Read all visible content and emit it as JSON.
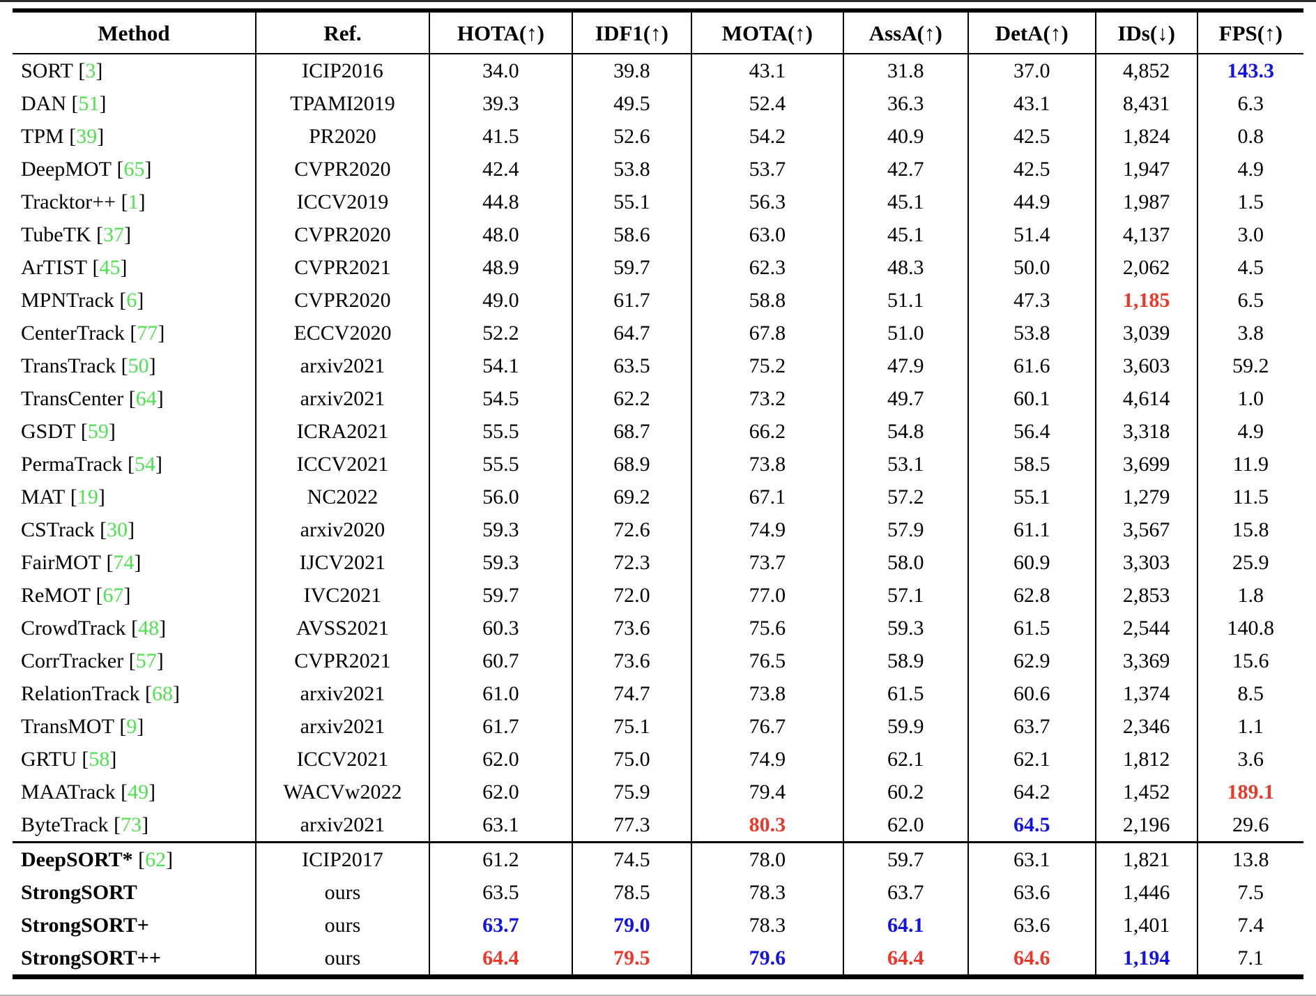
{
  "colors": {
    "best_red": "#e8392b",
    "second_blue": "#1414e0",
    "citation_green": "#4fe14f",
    "rule_black": "#000000"
  },
  "table": {
    "columns": [
      {
        "label": "Method"
      },
      {
        "label": "Ref."
      },
      {
        "label": "HOTA(↑)"
      },
      {
        "label": "IDF1(↑)"
      },
      {
        "label": "MOTA(↑)"
      },
      {
        "label": "AssA(↑)"
      },
      {
        "label": "DetA(↑)"
      },
      {
        "label": "IDs(↓)"
      },
      {
        "label": "FPS(↑)"
      }
    ],
    "section2_start_index": 24,
    "rows": [
      {
        "method": "SORT",
        "cite": "3",
        "bold": false,
        "ref": "ICIP2016",
        "metrics": [
          {
            "v": "34.0"
          },
          {
            "v": "39.8"
          },
          {
            "v": "43.1"
          },
          {
            "v": "31.8"
          },
          {
            "v": "37.0"
          },
          {
            "v": "4,852"
          },
          {
            "v": "143.3",
            "hl": "second"
          }
        ]
      },
      {
        "method": "DAN",
        "cite": "51",
        "bold": false,
        "ref": "TPAMI2019",
        "metrics": [
          {
            "v": "39.3"
          },
          {
            "v": "49.5"
          },
          {
            "v": "52.4"
          },
          {
            "v": "36.3"
          },
          {
            "v": "43.1"
          },
          {
            "v": "8,431"
          },
          {
            "v": "6.3"
          }
        ]
      },
      {
        "method": "TPM",
        "cite": "39",
        "bold": false,
        "ref": "PR2020",
        "metrics": [
          {
            "v": "41.5"
          },
          {
            "v": "52.6"
          },
          {
            "v": "54.2"
          },
          {
            "v": "40.9"
          },
          {
            "v": "42.5"
          },
          {
            "v": "1,824"
          },
          {
            "v": "0.8"
          }
        ]
      },
      {
        "method": "DeepMOT",
        "cite": "65",
        "bold": false,
        "ref": "CVPR2020",
        "metrics": [
          {
            "v": "42.4"
          },
          {
            "v": "53.8"
          },
          {
            "v": "53.7"
          },
          {
            "v": "42.7"
          },
          {
            "v": "42.5"
          },
          {
            "v": "1,947"
          },
          {
            "v": "4.9"
          }
        ]
      },
      {
        "method": "Tracktor++",
        "cite": "1",
        "bold": false,
        "ref": "ICCV2019",
        "metrics": [
          {
            "v": "44.8"
          },
          {
            "v": "55.1"
          },
          {
            "v": "56.3"
          },
          {
            "v": "45.1"
          },
          {
            "v": "44.9"
          },
          {
            "v": "1,987"
          },
          {
            "v": "1.5"
          }
        ]
      },
      {
        "method": "TubeTK",
        "cite": "37",
        "bold": false,
        "ref": "CVPR2020",
        "metrics": [
          {
            "v": "48.0"
          },
          {
            "v": "58.6"
          },
          {
            "v": "63.0"
          },
          {
            "v": "45.1"
          },
          {
            "v": "51.4"
          },
          {
            "v": "4,137"
          },
          {
            "v": "3.0"
          }
        ]
      },
      {
        "method": "ArTIST",
        "cite": "45",
        "bold": false,
        "ref": "CVPR2021",
        "metrics": [
          {
            "v": "48.9"
          },
          {
            "v": "59.7"
          },
          {
            "v": "62.3"
          },
          {
            "v": "48.3"
          },
          {
            "v": "50.0"
          },
          {
            "v": "2,062"
          },
          {
            "v": "4.5"
          }
        ]
      },
      {
        "method": "MPNTrack",
        "cite": "6",
        "bold": false,
        "ref": "CVPR2020",
        "metrics": [
          {
            "v": "49.0"
          },
          {
            "v": "61.7"
          },
          {
            "v": "58.8"
          },
          {
            "v": "51.1"
          },
          {
            "v": "47.3"
          },
          {
            "v": "1,185",
            "hl": "best"
          },
          {
            "v": "6.5"
          }
        ]
      },
      {
        "method": "CenterTrack",
        "cite": "77",
        "bold": false,
        "ref": "ECCV2020",
        "metrics": [
          {
            "v": "52.2"
          },
          {
            "v": "64.7"
          },
          {
            "v": "67.8"
          },
          {
            "v": "51.0"
          },
          {
            "v": "53.8"
          },
          {
            "v": "3,039"
          },
          {
            "v": "3.8"
          }
        ]
      },
      {
        "method": "TransTrack",
        "cite": "50",
        "bold": false,
        "ref": "arxiv2021",
        "metrics": [
          {
            "v": "54.1"
          },
          {
            "v": "63.5"
          },
          {
            "v": "75.2"
          },
          {
            "v": "47.9"
          },
          {
            "v": "61.6"
          },
          {
            "v": "3,603"
          },
          {
            "v": "59.2"
          }
        ]
      },
      {
        "method": "TransCenter",
        "cite": "64",
        "bold": false,
        "ref": "arxiv2021",
        "metrics": [
          {
            "v": "54.5"
          },
          {
            "v": "62.2"
          },
          {
            "v": "73.2"
          },
          {
            "v": "49.7"
          },
          {
            "v": "60.1"
          },
          {
            "v": "4,614"
          },
          {
            "v": "1.0"
          }
        ]
      },
      {
        "method": "GSDT",
        "cite": "59",
        "bold": false,
        "ref": "ICRA2021",
        "metrics": [
          {
            "v": "55.5"
          },
          {
            "v": "68.7"
          },
          {
            "v": "66.2"
          },
          {
            "v": "54.8"
          },
          {
            "v": "56.4"
          },
          {
            "v": "3,318"
          },
          {
            "v": "4.9"
          }
        ]
      },
      {
        "method": "PermaTrack",
        "cite": "54",
        "bold": false,
        "ref": "ICCV2021",
        "metrics": [
          {
            "v": "55.5"
          },
          {
            "v": "68.9"
          },
          {
            "v": "73.8"
          },
          {
            "v": "53.1"
          },
          {
            "v": "58.5"
          },
          {
            "v": "3,699"
          },
          {
            "v": "11.9"
          }
        ]
      },
      {
        "method": "MAT",
        "cite": "19",
        "bold": false,
        "ref": "NC2022",
        "metrics": [
          {
            "v": "56.0"
          },
          {
            "v": "69.2"
          },
          {
            "v": "67.1"
          },
          {
            "v": "57.2"
          },
          {
            "v": "55.1"
          },
          {
            "v": "1,279"
          },
          {
            "v": "11.5"
          }
        ]
      },
      {
        "method": "CSTrack",
        "cite": "30",
        "bold": false,
        "ref": "arxiv2020",
        "metrics": [
          {
            "v": "59.3"
          },
          {
            "v": "72.6"
          },
          {
            "v": "74.9"
          },
          {
            "v": "57.9"
          },
          {
            "v": "61.1"
          },
          {
            "v": "3,567"
          },
          {
            "v": "15.8"
          }
        ]
      },
      {
        "method": "FairMOT",
        "cite": "74",
        "bold": false,
        "ref": "IJCV2021",
        "metrics": [
          {
            "v": "59.3"
          },
          {
            "v": "72.3"
          },
          {
            "v": "73.7"
          },
          {
            "v": "58.0"
          },
          {
            "v": "60.9"
          },
          {
            "v": "3,303"
          },
          {
            "v": "25.9"
          }
        ]
      },
      {
        "method": "ReMOT",
        "cite": "67",
        "bold": false,
        "ref": "IVC2021",
        "metrics": [
          {
            "v": "59.7"
          },
          {
            "v": "72.0"
          },
          {
            "v": "77.0"
          },
          {
            "v": "57.1"
          },
          {
            "v": "62.8"
          },
          {
            "v": "2,853"
          },
          {
            "v": "1.8"
          }
        ]
      },
      {
        "method": "CrowdTrack",
        "cite": "48",
        "bold": false,
        "ref": "AVSS2021",
        "metrics": [
          {
            "v": "60.3"
          },
          {
            "v": "73.6"
          },
          {
            "v": "75.6"
          },
          {
            "v": "59.3"
          },
          {
            "v": "61.5"
          },
          {
            "v": "2,544"
          },
          {
            "v": "140.8"
          }
        ]
      },
      {
        "method": "CorrTracker",
        "cite": "57",
        "bold": false,
        "ref": "CVPR2021",
        "metrics": [
          {
            "v": "60.7"
          },
          {
            "v": "73.6"
          },
          {
            "v": "76.5"
          },
          {
            "v": "58.9"
          },
          {
            "v": "62.9"
          },
          {
            "v": "3,369"
          },
          {
            "v": "15.6"
          }
        ]
      },
      {
        "method": "RelationTrack",
        "cite": "68",
        "bold": false,
        "ref": "arxiv2021",
        "metrics": [
          {
            "v": "61.0"
          },
          {
            "v": "74.7"
          },
          {
            "v": "73.8"
          },
          {
            "v": "61.5"
          },
          {
            "v": "60.6"
          },
          {
            "v": "1,374"
          },
          {
            "v": "8.5"
          }
        ]
      },
      {
        "method": "TransMOT",
        "cite": "9",
        "bold": false,
        "ref": "arxiv2021",
        "metrics": [
          {
            "v": "61.7"
          },
          {
            "v": "75.1"
          },
          {
            "v": "76.7"
          },
          {
            "v": "59.9"
          },
          {
            "v": "63.7"
          },
          {
            "v": "2,346"
          },
          {
            "v": "1.1"
          }
        ]
      },
      {
        "method": "GRTU",
        "cite": "58",
        "bold": false,
        "ref": "ICCV2021",
        "metrics": [
          {
            "v": "62.0"
          },
          {
            "v": "75.0"
          },
          {
            "v": "74.9"
          },
          {
            "v": "62.1"
          },
          {
            "v": "62.1"
          },
          {
            "v": "1,812"
          },
          {
            "v": "3.6"
          }
        ]
      },
      {
        "method": "MAATrack",
        "cite": "49",
        "bold": false,
        "ref": "WACVw2022",
        "metrics": [
          {
            "v": "62.0"
          },
          {
            "v": "75.9"
          },
          {
            "v": "79.4"
          },
          {
            "v": "60.2"
          },
          {
            "v": "64.2"
          },
          {
            "v": "1,452"
          },
          {
            "v": "189.1",
            "hl": "best"
          }
        ]
      },
      {
        "method": "ByteTrack",
        "cite": "73",
        "bold": false,
        "ref": "arxiv2021",
        "metrics": [
          {
            "v": "63.1"
          },
          {
            "v": "77.3"
          },
          {
            "v": "80.3",
            "hl": "best"
          },
          {
            "v": "62.0"
          },
          {
            "v": "64.5",
            "hl": "second"
          },
          {
            "v": "2,196"
          },
          {
            "v": "29.6"
          }
        ]
      },
      {
        "method": "DeepSORT*",
        "cite": "62",
        "bold": true,
        "ref": "ICIP2017",
        "metrics": [
          {
            "v": "61.2"
          },
          {
            "v": "74.5"
          },
          {
            "v": "78.0"
          },
          {
            "v": "59.7"
          },
          {
            "v": "63.1"
          },
          {
            "v": "1,821"
          },
          {
            "v": "13.8"
          }
        ]
      },
      {
        "method": "StrongSORT",
        "cite": null,
        "bold": true,
        "ref": "ours",
        "metrics": [
          {
            "v": "63.5"
          },
          {
            "v": "78.5"
          },
          {
            "v": "78.3"
          },
          {
            "v": "63.7"
          },
          {
            "v": "63.6"
          },
          {
            "v": "1,446"
          },
          {
            "v": "7.5"
          }
        ]
      },
      {
        "method": "StrongSORT+",
        "cite": null,
        "bold": true,
        "ref": "ours",
        "metrics": [
          {
            "v": "63.7",
            "hl": "second"
          },
          {
            "v": "79.0",
            "hl": "second"
          },
          {
            "v": "78.3"
          },
          {
            "v": "64.1",
            "hl": "second"
          },
          {
            "v": "63.6"
          },
          {
            "v": "1,401"
          },
          {
            "v": "7.4"
          }
        ]
      },
      {
        "method": "StrongSORT++",
        "cite": null,
        "bold": true,
        "ref": "ours",
        "metrics": [
          {
            "v": "64.4",
            "hl": "best"
          },
          {
            "v": "79.5",
            "hl": "best"
          },
          {
            "v": "79.6",
            "hl": "second"
          },
          {
            "v": "64.4",
            "hl": "best"
          },
          {
            "v": "64.6",
            "hl": "best"
          },
          {
            "v": "1,194",
            "hl": "second"
          },
          {
            "v": "7.1"
          }
        ]
      }
    ]
  }
}
